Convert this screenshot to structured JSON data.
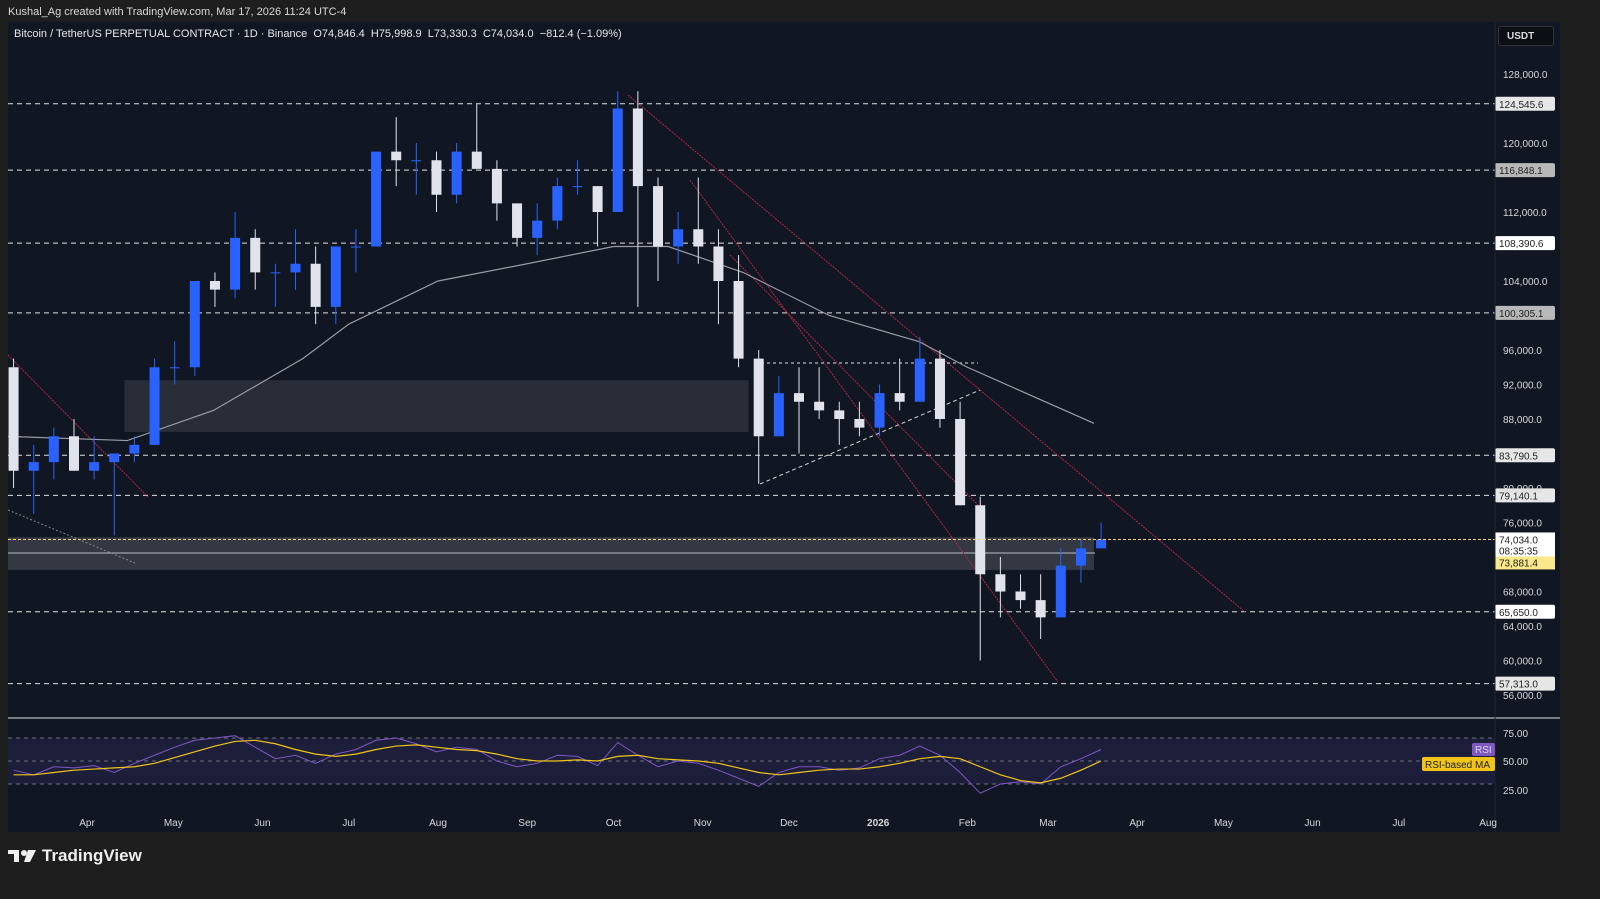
{
  "credit": "Kushal_Ag created with TradingView.com, Mar 17, 2026 11:24 UTC-4",
  "legend": {
    "symbol": "Bitcoin / TetherUS PERPETUAL CONTRACT · 1D · Binance",
    "open": "O74,846.4",
    "high": "H75,998.9",
    "low": "L73,330.3",
    "close": "C74,034.0",
    "change": "−812.4 (−1.09%)"
  },
  "currency_button": "USDT",
  "brand": "TradingView",
  "colors": {
    "up": "#2962ff",
    "down": "#e0e3eb",
    "ma": "#9a9ca3",
    "rsi": "#7e57c2",
    "rsi_ma": "#f0c419",
    "trendline": "#b2254a",
    "price_line": "#f5d76e"
  },
  "chart_data": {
    "type": "candlestick",
    "interval_shown": "1D",
    "ylim": [
      54000,
      130000
    ],
    "y_ticks": [
      "128,000.0",
      "120,000.0",
      "112,000.0",
      "104,000.0",
      "96,000.0",
      "92,000.0",
      "88,000.0",
      "80,000.0",
      "76,000.0",
      "68,000.0",
      "64,000.0",
      "60,000.0",
      "56,000.0"
    ],
    "x_ticks": [
      "Apr",
      "May",
      "Jun",
      "Jul",
      "Aug",
      "Sep",
      "Oct",
      "Nov",
      "Dec",
      "2026",
      "Feb",
      "Mar",
      "Apr",
      "May",
      "Jun",
      "Jul",
      "Aug"
    ],
    "candles_weekly_approx": [
      [
        "2025-03-03",
        94,
        95,
        80,
        82
      ],
      [
        "2025-03-10",
        82,
        85,
        77,
        83
      ],
      [
        "2025-03-17",
        83,
        87,
        81,
        86
      ],
      [
        "2025-03-24",
        86,
        88,
        82,
        82
      ],
      [
        "2025-03-31",
        82,
        86,
        81,
        83
      ],
      [
        "2025-04-07",
        83,
        84,
        74.5,
        84
      ],
      [
        "2025-04-14",
        84,
        86,
        83,
        85
      ],
      [
        "2025-04-21",
        85,
        95,
        85,
        94
      ],
      [
        "2025-04-28",
        94,
        97,
        92,
        94
      ],
      [
        "2025-05-05",
        94,
        104,
        93,
        104
      ],
      [
        "2025-05-12",
        104,
        105,
        101,
        103
      ],
      [
        "2025-05-19",
        103,
        112,
        102,
        109
      ],
      [
        "2025-05-26",
        109,
        110,
        103,
        105
      ],
      [
        "2025-06-02",
        105,
        106,
        101,
        105
      ],
      [
        "2025-06-09",
        105,
        110,
        103,
        106
      ],
      [
        "2025-06-16",
        106,
        108,
        99,
        101
      ],
      [
        "2025-06-23",
        101,
        108,
        99,
        108
      ],
      [
        "2025-06-30",
        108,
        110,
        105,
        108
      ],
      [
        "2025-07-07",
        108,
        119,
        108,
        119
      ],
      [
        "2025-07-14",
        119,
        123,
        115,
        118
      ],
      [
        "2025-07-21",
        118,
        120,
        114,
        118
      ],
      [
        "2025-07-28",
        118,
        119,
        112,
        114
      ],
      [
        "2025-08-04",
        114,
        120,
        113,
        119
      ],
      [
        "2025-08-11",
        119,
        124.5,
        117,
        117
      ],
      [
        "2025-08-18",
        117,
        118,
        111,
        113
      ],
      [
        "2025-08-25",
        113,
        113,
        108,
        109
      ],
      [
        "2025-09-01",
        109,
        113,
        107,
        111
      ],
      [
        "2025-09-08",
        111,
        116,
        110,
        115
      ],
      [
        "2025-09-15",
        115,
        118,
        114,
        115
      ],
      [
        "2025-09-22",
        115,
        115,
        108,
        112
      ],
      [
        "2025-09-29",
        112,
        126,
        112,
        124
      ],
      [
        "2025-10-06",
        124,
        126,
        101,
        115
      ],
      [
        "2025-10-13",
        115,
        116,
        104,
        108
      ],
      [
        "2025-10-20",
        108,
        112,
        106,
        110
      ],
      [
        "2025-10-27",
        110,
        116,
        106,
        108
      ],
      [
        "2025-11-03",
        108,
        110,
        99,
        104
      ],
      [
        "2025-11-10",
        104,
        107,
        94,
        95
      ],
      [
        "2025-11-17",
        95,
        96,
        80.5,
        86
      ],
      [
        "2025-11-24",
        86,
        93,
        86,
        91
      ],
      [
        "2025-12-01",
        91,
        94,
        84,
        90
      ],
      [
        "2025-12-08",
        90,
        94,
        88,
        89
      ],
      [
        "2025-12-15",
        89,
        90,
        85,
        88
      ],
      [
        "2025-12-22",
        88,
        90,
        86,
        87
      ],
      [
        "2025-12-29",
        87,
        92,
        86,
        91
      ],
      [
        "2026-01-05",
        91,
        95,
        89,
        90
      ],
      [
        "2026-01-12",
        90,
        97.5,
        90,
        95
      ],
      [
        "2026-01-19",
        95,
        96,
        87,
        88
      ],
      [
        "2026-01-26",
        88,
        90,
        78,
        78
      ],
      [
        "2026-02-02",
        78,
        79,
        60,
        70
      ],
      [
        "2026-02-09",
        70,
        72,
        65,
        68
      ],
      [
        "2026-02-16",
        68,
        70,
        66,
        67
      ],
      [
        "2026-02-23",
        67,
        70,
        62.5,
        65
      ],
      [
        "2026-03-02",
        65,
        73,
        65,
        71
      ],
      [
        "2026-03-09",
        71,
        74,
        69,
        73
      ],
      [
        "2026-03-16",
        73,
        76,
        73,
        74.034
      ]
    ],
    "candle_units": "thousand USDT [date, open, high, low, close]",
    "moving_average": [
      [
        "2025-03-03",
        86
      ],
      [
        "2025-04-15",
        85.5
      ],
      [
        "2025-05-15",
        89
      ],
      [
        "2025-06-15",
        95
      ],
      [
        "2025-07-01",
        99
      ],
      [
        "2025-08-01",
        104
      ],
      [
        "2025-09-01",
        106
      ],
      [
        "2025-10-01",
        108
      ],
      [
        "2025-10-20",
        108
      ],
      [
        "2025-11-15",
        105
      ],
      [
        "2025-12-15",
        100
      ],
      [
        "2026-01-15",
        97
      ],
      [
        "2026-02-01",
        94
      ],
      [
        "2026-03-17",
        87.5
      ]
    ],
    "levels": [
      {
        "label": "124,545.6",
        "value": 124545.6,
        "style": "light"
      },
      {
        "label": "116,848.1",
        "value": 116848.1,
        "style": "gray"
      },
      {
        "label": "108,390.6",
        "value": 108390.6,
        "style": "white"
      },
      {
        "label": "100,305.1",
        "value": 100305.1,
        "style": "gray"
      },
      {
        "label": "83,790.5",
        "value": 83790.5,
        "style": "light"
      },
      {
        "label": "79,140.1",
        "value": 79140.1,
        "style": "light"
      },
      {
        "label": "65,650.0",
        "value": 65650.0,
        "style": "white"
      },
      {
        "label": "57,313.0",
        "value": 57313.0,
        "style": "light"
      }
    ],
    "last_price": {
      "label": "74,034.0",
      "value": 74034.0,
      "countdown": "08:35:35",
      "secondary": "73,881.4"
    },
    "zones": [
      {
        "from": "2025-04-14",
        "to": "2025-11-17",
        "low": 86500,
        "high": 92500
      },
      {
        "from": "2025-03-01",
        "to": "2026-03-17",
        "low": 70500,
        "high": 74300
      }
    ],
    "rsi": {
      "label": "RSI",
      "ma_label": "RSI-based MA",
      "y_ticks": [
        "75.00",
        "50.00",
        "25.00"
      ],
      "values": [
        42,
        38,
        45,
        44,
        46,
        40,
        48,
        55,
        62,
        68,
        70,
        72,
        62,
        52,
        55,
        48,
        56,
        60,
        68,
        70,
        65,
        58,
        62,
        60,
        50,
        45,
        48,
        55,
        54,
        46,
        66,
        55,
        45,
        50,
        48,
        42,
        35,
        28,
        40,
        45,
        45,
        42,
        44,
        52,
        55,
        63,
        55,
        40,
        22,
        30,
        32,
        30,
        45,
        52,
        60
      ],
      "ma_values": [
        38,
        38,
        40,
        42,
        43,
        44,
        45,
        48,
        53,
        58,
        63,
        67,
        68,
        65,
        60,
        56,
        54,
        56,
        60,
        63,
        64,
        62,
        60,
        59,
        56,
        52,
        50,
        50,
        51,
        50,
        54,
        55,
        52,
        51,
        50,
        48,
        44,
        40,
        38,
        40,
        42,
        43,
        43,
        45,
        48,
        52,
        54,
        52,
        45,
        38,
        33,
        31,
        35,
        42,
        50
      ]
    }
  }
}
